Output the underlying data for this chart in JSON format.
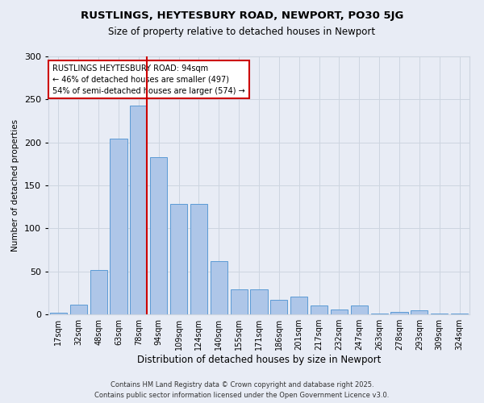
{
  "title1": "RUSTLINGS, HEYTESBURY ROAD, NEWPORT, PO30 5JG",
  "title2": "Size of property relative to detached houses in Newport",
  "xlabel": "Distribution of detached houses by size in Newport",
  "ylabel": "Number of detached properties",
  "categories": [
    "17sqm",
    "32sqm",
    "48sqm",
    "63sqm",
    "78sqm",
    "94sqm",
    "109sqm",
    "124sqm",
    "140sqm",
    "155sqm",
    "171sqm",
    "186sqm",
    "201sqm",
    "217sqm",
    "232sqm",
    "247sqm",
    "263sqm",
    "278sqm",
    "293sqm",
    "309sqm",
    "324sqm"
  ],
  "values": [
    2,
    11,
    52,
    204,
    243,
    183,
    128,
    128,
    62,
    29,
    29,
    17,
    21,
    10,
    6,
    10,
    1,
    3,
    5,
    1,
    1
  ],
  "bar_color": "#aec6e8",
  "bar_edge_color": "#5b9bd5",
  "ref_line_index": 4,
  "ref_line_label_line1": "RUSTLINGS HEYTESBURY ROAD: 94sqm",
  "ref_line_label_line2": "← 46% of detached houses are smaller (497)",
  "ref_line_label_line3": "54% of semi-detached houses are larger (574) →",
  "annotation_box_color": "#ffffff",
  "annotation_edge_color": "#cc0000",
  "vline_color": "#cc0000",
  "grid_color": "#cdd5e0",
  "bg_color": "#e8ecf5",
  "plot_bg_color": "#e8ecf5",
  "footer": "Contains HM Land Registry data © Crown copyright and database right 2025.\nContains public sector information licensed under the Open Government Licence v3.0.",
  "ylim": [
    0,
    300
  ],
  "yticks": [
    0,
    50,
    100,
    150,
    200,
    250,
    300
  ]
}
